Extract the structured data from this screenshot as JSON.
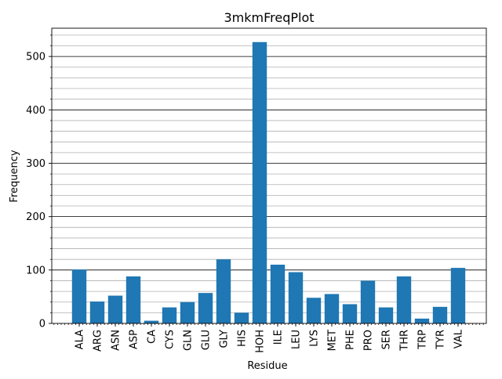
{
  "chart_data": {
    "type": "bar",
    "title": "3mkmFreqPlot",
    "xlabel": "Residue",
    "ylabel": "Frequency",
    "categories": [
      "ALA",
      "ARG",
      "ASN",
      "ASP",
      "CA",
      "CYS",
      "GLN",
      "GLU",
      "GLY",
      "HIS",
      "HOH",
      "ILE",
      "LEU",
      "LYS",
      "MET",
      "PHE",
      "PRO",
      "SER",
      "THR",
      "TRP",
      "TYR",
      "VAL"
    ],
    "values": [
      101,
      41,
      52,
      88,
      5,
      30,
      40,
      57,
      120,
      20,
      527,
      110,
      96,
      48,
      55,
      36,
      80,
      30,
      88,
      9,
      31,
      104
    ],
    "ylim": [
      0,
      553
    ],
    "yticks": [
      0,
      100,
      200,
      300,
      400,
      500
    ],
    "grid": true,
    "bar_color": "#1f77b4",
    "grid_major_color": "#000000",
    "grid_minor_color": "#b0b0b0"
  }
}
